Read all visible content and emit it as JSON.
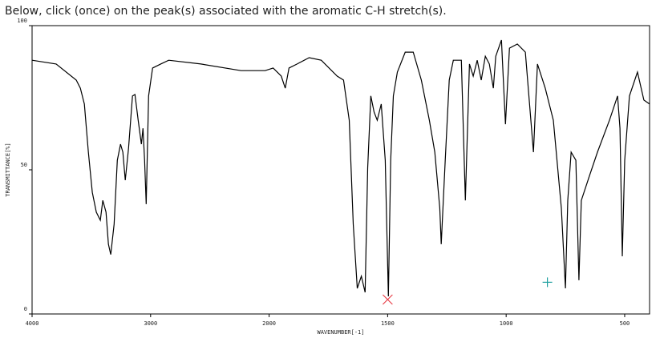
{
  "question": "Below, click (once) on the peak(s) associated with the aromatic C-H stretch(s).",
  "chart_data": {
    "type": "line",
    "xlabel": "WAVENUMBER[-1]",
    "ylabel": "TRANSMITTANCE[%]",
    "xlim": [
      4000,
      395
    ],
    "x_scale_change": 2000,
    "ylim": [
      0,
      100
    ],
    "xticks": [
      4000,
      3000,
      2000,
      1500,
      1000,
      500
    ],
    "yticks": [
      0,
      50,
      100
    ],
    "color": "#000000",
    "x": [
      4000,
      3797,
      3627,
      3593,
      3559,
      3525,
      3492,
      3458,
      3424,
      3403,
      3376,
      3356,
      3336,
      3308,
      3281,
      3254,
      3234,
      3214,
      3186,
      3153,
      3132,
      3105,
      3078,
      3064,
      3051,
      3037,
      3017,
      2983,
      2915,
      2847,
      2576,
      2237,
      2034,
      1983,
      1949,
      1932,
      1916,
      1882,
      1831,
      1780,
      1713,
      1686,
      1662,
      1645,
      1628,
      1611,
      1595,
      1584,
      1571,
      1557,
      1544,
      1527,
      1510,
      1497,
      1487,
      1476,
      1459,
      1426,
      1392,
      1358,
      1324,
      1301,
      1280,
      1274,
      1257,
      1240,
      1223,
      1189,
      1172,
      1155,
      1139,
      1122,
      1105,
      1088,
      1071,
      1054,
      1044,
      1020,
      1003,
      986,
      953,
      919,
      885,
      868,
      835,
      801,
      767,
      750,
      740,
      726,
      706,
      693,
      683,
      649,
      615,
      564,
      530,
      520,
      510,
      500,
      480,
      446,
      419,
      395
    ],
    "values": [
      88,
      86.7,
      81.1,
      78.3,
      72.8,
      56.1,
      42.2,
      35.3,
      32.5,
      39.4,
      35.3,
      24.2,
      20.6,
      31.1,
      53.3,
      58.9,
      56.1,
      46.4,
      57.5,
      75.6,
      76.1,
      67.2,
      58.9,
      64.4,
      53.3,
      38.1,
      75.6,
      85.3,
      86.7,
      88,
      86.7,
      84.4,
      84.4,
      85.3,
      82.5,
      78.3,
      85.3,
      86.7,
      88.9,
      88,
      82.5,
      81.1,
      67.2,
      31.1,
      8.9,
      13.1,
      7.5,
      50.6,
      75.6,
      70,
      67.2,
      72.8,
      53.3,
      6.1,
      53.3,
      75.6,
      83.9,
      90.8,
      90.8,
      81.1,
      67.2,
      56.1,
      36.7,
      24.2,
      53.3,
      81.1,
      88,
      88,
      39.4,
      86.7,
      82.5,
      88,
      81.1,
      89.4,
      86.7,
      78.3,
      89.4,
      95,
      65.8,
      92.2,
      93.6,
      90.8,
      56.1,
      86.7,
      78.3,
      67.2,
      36.7,
      8.9,
      39.4,
      56.1,
      53.3,
      11.7,
      39.4,
      47.8,
      56.1,
      67.2,
      75.6,
      64.4,
      20,
      53.3,
      75.6,
      83.9,
      74.2,
      72.8
    ],
    "markers": [
      {
        "x": 1500,
        "y": 5,
        "symbol": "x",
        "color": "#e8404a"
      },
      {
        "x": 826,
        "y": 11,
        "symbol": "+",
        "color": "#20a0a0"
      }
    ]
  }
}
